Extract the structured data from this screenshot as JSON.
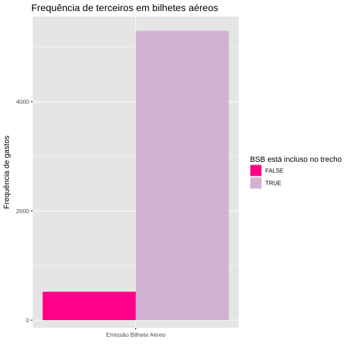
{
  "chart_data": {
    "type": "bar",
    "position": "dodge",
    "title": "Frequência de terceiros em bilhetes aéreos",
    "xlabel": "",
    "ylabel": "Frequência de gastos",
    "categories": [
      "Emissão Bilhete Aéreo"
    ],
    "series": [
      {
        "name": "FALSE",
        "values": [
          520
        ],
        "color": "#ff0088"
      },
      {
        "name": "TRUE",
        "values": [
          5300
        ],
        "color": "#d1b3d1"
      }
    ],
    "ylim": [
      -140,
      5560
    ],
    "yticks": [
      0,
      2000,
      4000
    ],
    "ytick_labels": [
      "0",
      "2000",
      "4000"
    ],
    "grid": true,
    "panel_background": "#e5e5e5",
    "grid_color": "#ffffff",
    "legend": {
      "title": "BSB está incluso no trecho",
      "placement": "right"
    }
  }
}
